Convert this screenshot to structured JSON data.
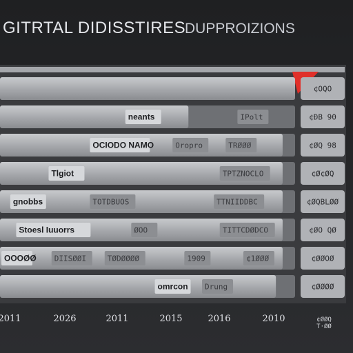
{
  "chart_data": {
    "type": "bar",
    "title": "GITRTAL DIDISSTIRES",
    "subtitle": "DUPPROIZIONS",
    "rows": [
      {
        "labels": [],
        "value": "¢OQO"
      },
      {
        "labels": [
          "neants",
          "IPolt"
        ],
        "value": "¢ÐB 90"
      },
      {
        "labels": [
          "OCIODO NAMO",
          "Oropro",
          "TRØØØ"
        ],
        "value": "¢ØQ 98"
      },
      {
        "labels": [
          "Tlgiot",
          "TPTZNOCLO"
        ],
        "value": "¢Ø¢ØQ"
      },
      {
        "labels": [
          "gnobbs",
          "TOTDBUOS",
          "TTNIIDDBC"
        ],
        "value": "¢ØQBLØØ"
      },
      {
        "labels": [
          "Stoesl Iuuorrs",
          "ØOO",
          "TITTCDØDCO"
        ],
        "value": "¢ØO QØ"
      },
      {
        "labels": [
          "OOOØØ",
          "DIISØØI",
          "TØDØØØØ",
          "1909",
          "¢1ØØØ"
        ],
        "value": "¢ØØOØ"
      },
      {
        "labels": [
          "omrcon",
          "Drung"
        ],
        "value": "¢ØØØØ"
      }
    ],
    "values": [
      0.88,
      0.56,
      0.84,
      0.84,
      0.84,
      0.84,
      0.84,
      0.82
    ],
    "x_ticks": [
      "2011",
      "2026",
      "2011",
      "2015",
      "2016",
      "2010",
      "¢ØØQ"
    ],
    "x_ticks_last_second_line": "T·ØØ"
  },
  "colors": {
    "background": "#2a2b2e",
    "bar_light": "#b9bbbf",
    "bar_mid": "#9c9ea3",
    "bar_dark": "#7d7f84",
    "accent": "#e0302a",
    "value_box": "#b0b2b6"
  }
}
